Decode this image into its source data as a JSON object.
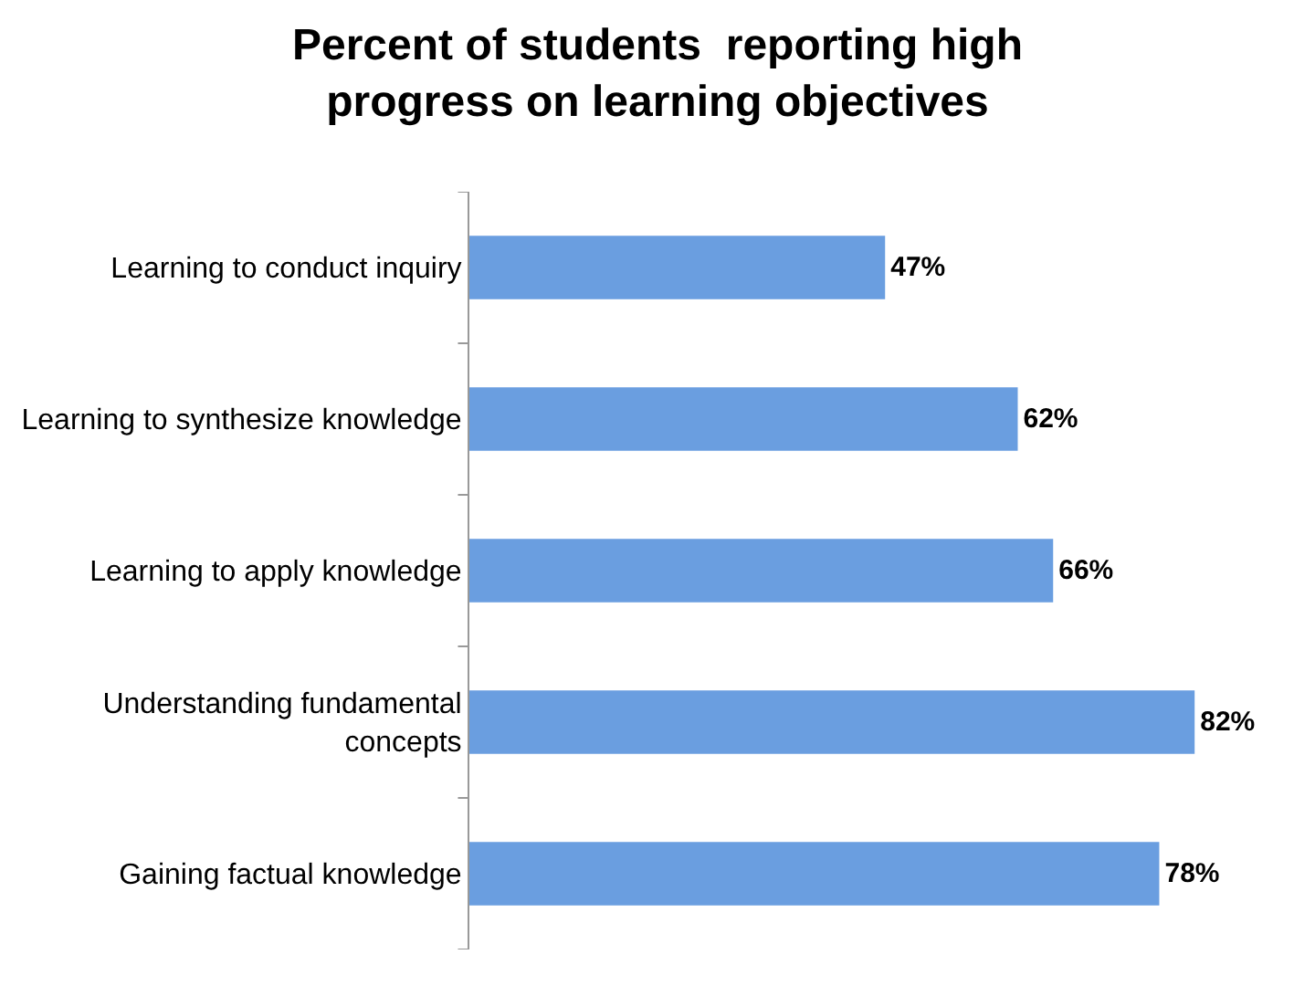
{
  "chart_data": {
    "type": "bar",
    "orientation": "horizontal",
    "title": "Percent of students  reporting high progress on learning objectives",
    "categories": [
      "Learning to conduct inquiry",
      "Learning to synthesize knowledge",
      "Learning to apply knowledge",
      "Understanding fundamental concepts",
      "Gaining factual knowledge"
    ],
    "values": [
      47,
      62,
      66,
      82,
      78
    ],
    "value_labels": [
      "47%",
      "62%",
      "66%",
      "82%",
      "78%"
    ],
    "color": "#6a9ee0"
  }
}
